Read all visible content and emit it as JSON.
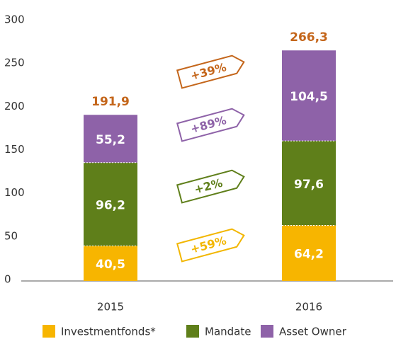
{
  "chart_data": {
    "type": "stacked_bar",
    "categories": [
      "2015",
      "2016"
    ],
    "series": [
      {
        "name": "Investmentfonds*",
        "color": "#f7b500",
        "values": [
          40.5,
          64.2
        ],
        "value_labels": [
          "40,5",
          "64,2"
        ]
      },
      {
        "name": "Mandate",
        "color": "#5f7f1a",
        "values": [
          96.2,
          97.6
        ],
        "value_labels": [
          "96,2",
          "97,6"
        ]
      },
      {
        "name": "Asset Owner",
        "color": "#8e62a8",
        "values": [
          55.2,
          104.5
        ],
        "value_labels": [
          "55,2",
          "104,5"
        ]
      }
    ],
    "totals": [
      191.9,
      266.3
    ],
    "total_labels": [
      "191,9",
      "266,3"
    ],
    "total_color": "#c4661b",
    "annotations": [
      {
        "text": "+39%",
        "color": "#c4661b"
      },
      {
        "text": "+89%",
        "color": "#8e62a8"
      },
      {
        "text": "+2%",
        "color": "#5f7f1a"
      },
      {
        "text": "+59%",
        "color": "#f2b600"
      }
    ],
    "ylim": [
      0,
      300
    ],
    "yticks": [
      0,
      50,
      100,
      150,
      200,
      250,
      300
    ],
    "grid": false,
    "legend": "bottom"
  }
}
